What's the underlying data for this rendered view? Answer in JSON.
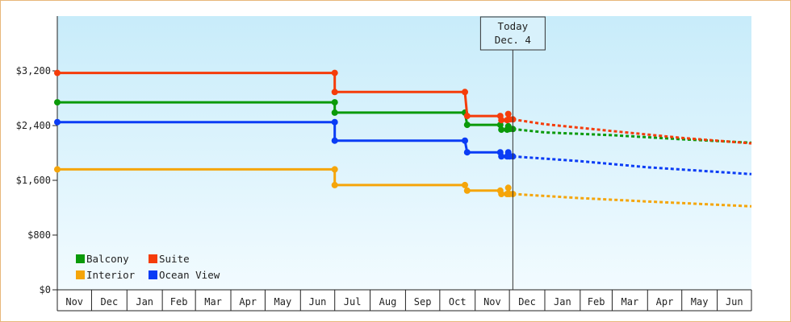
{
  "chart_data": {
    "type": "line",
    "title": "",
    "xlabel": "",
    "ylabel": "",
    "ylim": [
      0,
      4000
    ],
    "y_ticks": [
      0,
      800,
      1600,
      2400,
      3200
    ],
    "y_tick_labels": [
      "$0",
      "$800",
      "$1,600",
      "$2,400",
      "$3,200"
    ],
    "x_start": "2023-11-01",
    "x_end": "2025-07-01",
    "x_tick_labels": [
      "Nov",
      "Dec",
      "Jan",
      "Feb",
      "Mar",
      "Apr",
      "May",
      "Jun",
      "Jul",
      "Aug",
      "Sep",
      "Oct",
      "Nov",
      "Dec",
      "Jan",
      "Feb",
      "Mar",
      "Apr",
      "May",
      "Jun"
    ],
    "today": {
      "line1": "Today",
      "line2": "Dec. 4",
      "date": "2024-12-04"
    },
    "legend": {
      "placement": "bottom-left"
    },
    "series": [
      {
        "name": "Balcony",
        "color": "#0a9a0a",
        "points": [
          [
            "2023-11-01",
            2740
          ],
          [
            "2024-07-01",
            2740
          ],
          [
            "2024-07-01",
            2590
          ],
          [
            "2024-10-23",
            2590
          ],
          [
            "2024-10-25",
            2410
          ],
          [
            "2024-11-23",
            2410
          ],
          [
            "2024-11-24",
            2340
          ],
          [
            "2024-11-29",
            2340
          ],
          [
            "2024-11-30",
            2390
          ],
          [
            "2024-12-01",
            2350
          ],
          [
            "2024-12-04",
            2350
          ]
        ],
        "forecast": [
          [
            "2024-12-04",
            2350
          ],
          [
            "2025-01-01",
            2300
          ],
          [
            "2025-03-01",
            2260
          ],
          [
            "2025-05-01",
            2200
          ],
          [
            "2025-07-01",
            2150
          ]
        ]
      },
      {
        "name": "Suite",
        "color": "#f53c0a",
        "points": [
          [
            "2023-11-01",
            3170
          ],
          [
            "2024-07-01",
            3170
          ],
          [
            "2024-07-01",
            2890
          ],
          [
            "2024-10-23",
            2890
          ],
          [
            "2024-10-25",
            2540
          ],
          [
            "2024-11-23",
            2540
          ],
          [
            "2024-11-24",
            2480
          ],
          [
            "2024-11-29",
            2480
          ],
          [
            "2024-11-30",
            2570
          ],
          [
            "2024-12-01",
            2490
          ],
          [
            "2024-12-04",
            2490
          ]
        ],
        "forecast": [
          [
            "2024-12-04",
            2490
          ],
          [
            "2025-01-01",
            2420
          ],
          [
            "2025-03-01",
            2320
          ],
          [
            "2025-05-01",
            2220
          ],
          [
            "2025-07-01",
            2140
          ]
        ]
      },
      {
        "name": "Interior",
        "color": "#f5a50a",
        "points": [
          [
            "2023-11-01",
            1760
          ],
          [
            "2024-07-01",
            1760
          ],
          [
            "2024-07-01",
            1530
          ],
          [
            "2024-10-23",
            1530
          ],
          [
            "2024-10-25",
            1450
          ],
          [
            "2024-11-23",
            1450
          ],
          [
            "2024-11-24",
            1400
          ],
          [
            "2024-11-29",
            1400
          ],
          [
            "2024-11-30",
            1490
          ],
          [
            "2024-12-01",
            1400
          ],
          [
            "2024-12-04",
            1400
          ]
        ],
        "forecast": [
          [
            "2024-12-04",
            1400
          ],
          [
            "2025-02-01",
            1340
          ],
          [
            "2025-04-01",
            1290
          ],
          [
            "2025-07-01",
            1220
          ]
        ]
      },
      {
        "name": "Ocean View",
        "color": "#0a3cf5",
        "points": [
          [
            "2023-11-01",
            2450
          ],
          [
            "2024-07-01",
            2450
          ],
          [
            "2024-07-01",
            2180
          ],
          [
            "2024-10-23",
            2180
          ],
          [
            "2024-10-25",
            2010
          ],
          [
            "2024-11-23",
            2010
          ],
          [
            "2024-11-24",
            1950
          ],
          [
            "2024-11-29",
            1950
          ],
          [
            "2024-11-30",
            2010
          ],
          [
            "2024-12-01",
            1950
          ],
          [
            "2024-12-04",
            1950
          ]
        ],
        "forecast": [
          [
            "2024-12-04",
            1950
          ],
          [
            "2025-02-01",
            1880
          ],
          [
            "2025-04-01",
            1790
          ],
          [
            "2025-07-01",
            1690
          ]
        ]
      }
    ],
    "colors": {
      "plot_top": "#c8ecfa",
      "plot_bottom": "#f2fbff",
      "border": "#e8b77a"
    }
  }
}
